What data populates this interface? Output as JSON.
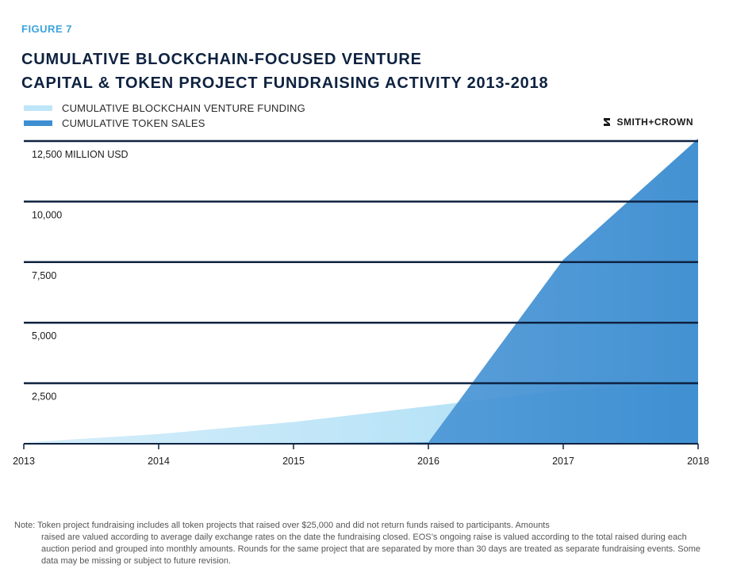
{
  "figure_label": "FIGURE 7",
  "title_line1": "CUMULATIVE BLOCKCHAIN-FOCUSED VENTURE",
  "title_line2": "CAPITAL & TOKEN PROJECT FUNDRAISING ACTIVITY 2013-2018",
  "brand": "SMITH+CROWN",
  "colors": {
    "venture": "#bfe5f8",
    "token": "#3d8fd2",
    "grid": "#0e2240",
    "title": "#0e2240",
    "figure_label": "#3ba3dd"
  },
  "chart_data": {
    "type": "area",
    "x": [
      2013,
      2014,
      2015,
      2016,
      2017,
      2018
    ],
    "x_tick_labels": [
      "2013",
      "2014",
      "2015",
      "2016",
      "2017",
      "2018"
    ],
    "y_tick_labels": [
      "12,500 MILLION USD",
      "10,000",
      "7,500",
      "5,000",
      "2,500"
    ],
    "y_ticks": [
      12500,
      10000,
      7500,
      5000,
      2500
    ],
    "ylim": [
      0,
      12500
    ],
    "xlim": [
      2013,
      2018
    ],
    "grid": true,
    "legend_position": "top-left",
    "series": [
      {
        "name": "CUMULATIVE BLOCKCHAIN VENTURE FUNDING",
        "x": [
          2013,
          2014,
          2015,
          2016,
          2017,
          2018
        ],
        "values": [
          50,
          400,
          900,
          1550,
          2200,
          2500
        ]
      },
      {
        "name": "CUMULATIVE TOKEN SALES",
        "x": [
          2013,
          2014,
          2015,
          2016,
          2017,
          2018
        ],
        "values": [
          0,
          0,
          30,
          60,
          7600,
          12600
        ]
      }
    ]
  },
  "note_first": "Note: Token project fundraising includes all token projects that raised over $25,000 and did not return funds raised to participants. Amounts",
  "note_rest": "raised are valued according to average daily exchange rates on the date the fundraising closed. EOS’s ongoing raise is valued according to the total raised during each auction period and grouped into monthly amounts. Rounds for the same project that are separated by more than 30 days are treated as separate fundraising events. Some data may be missing or subject to future revision."
}
